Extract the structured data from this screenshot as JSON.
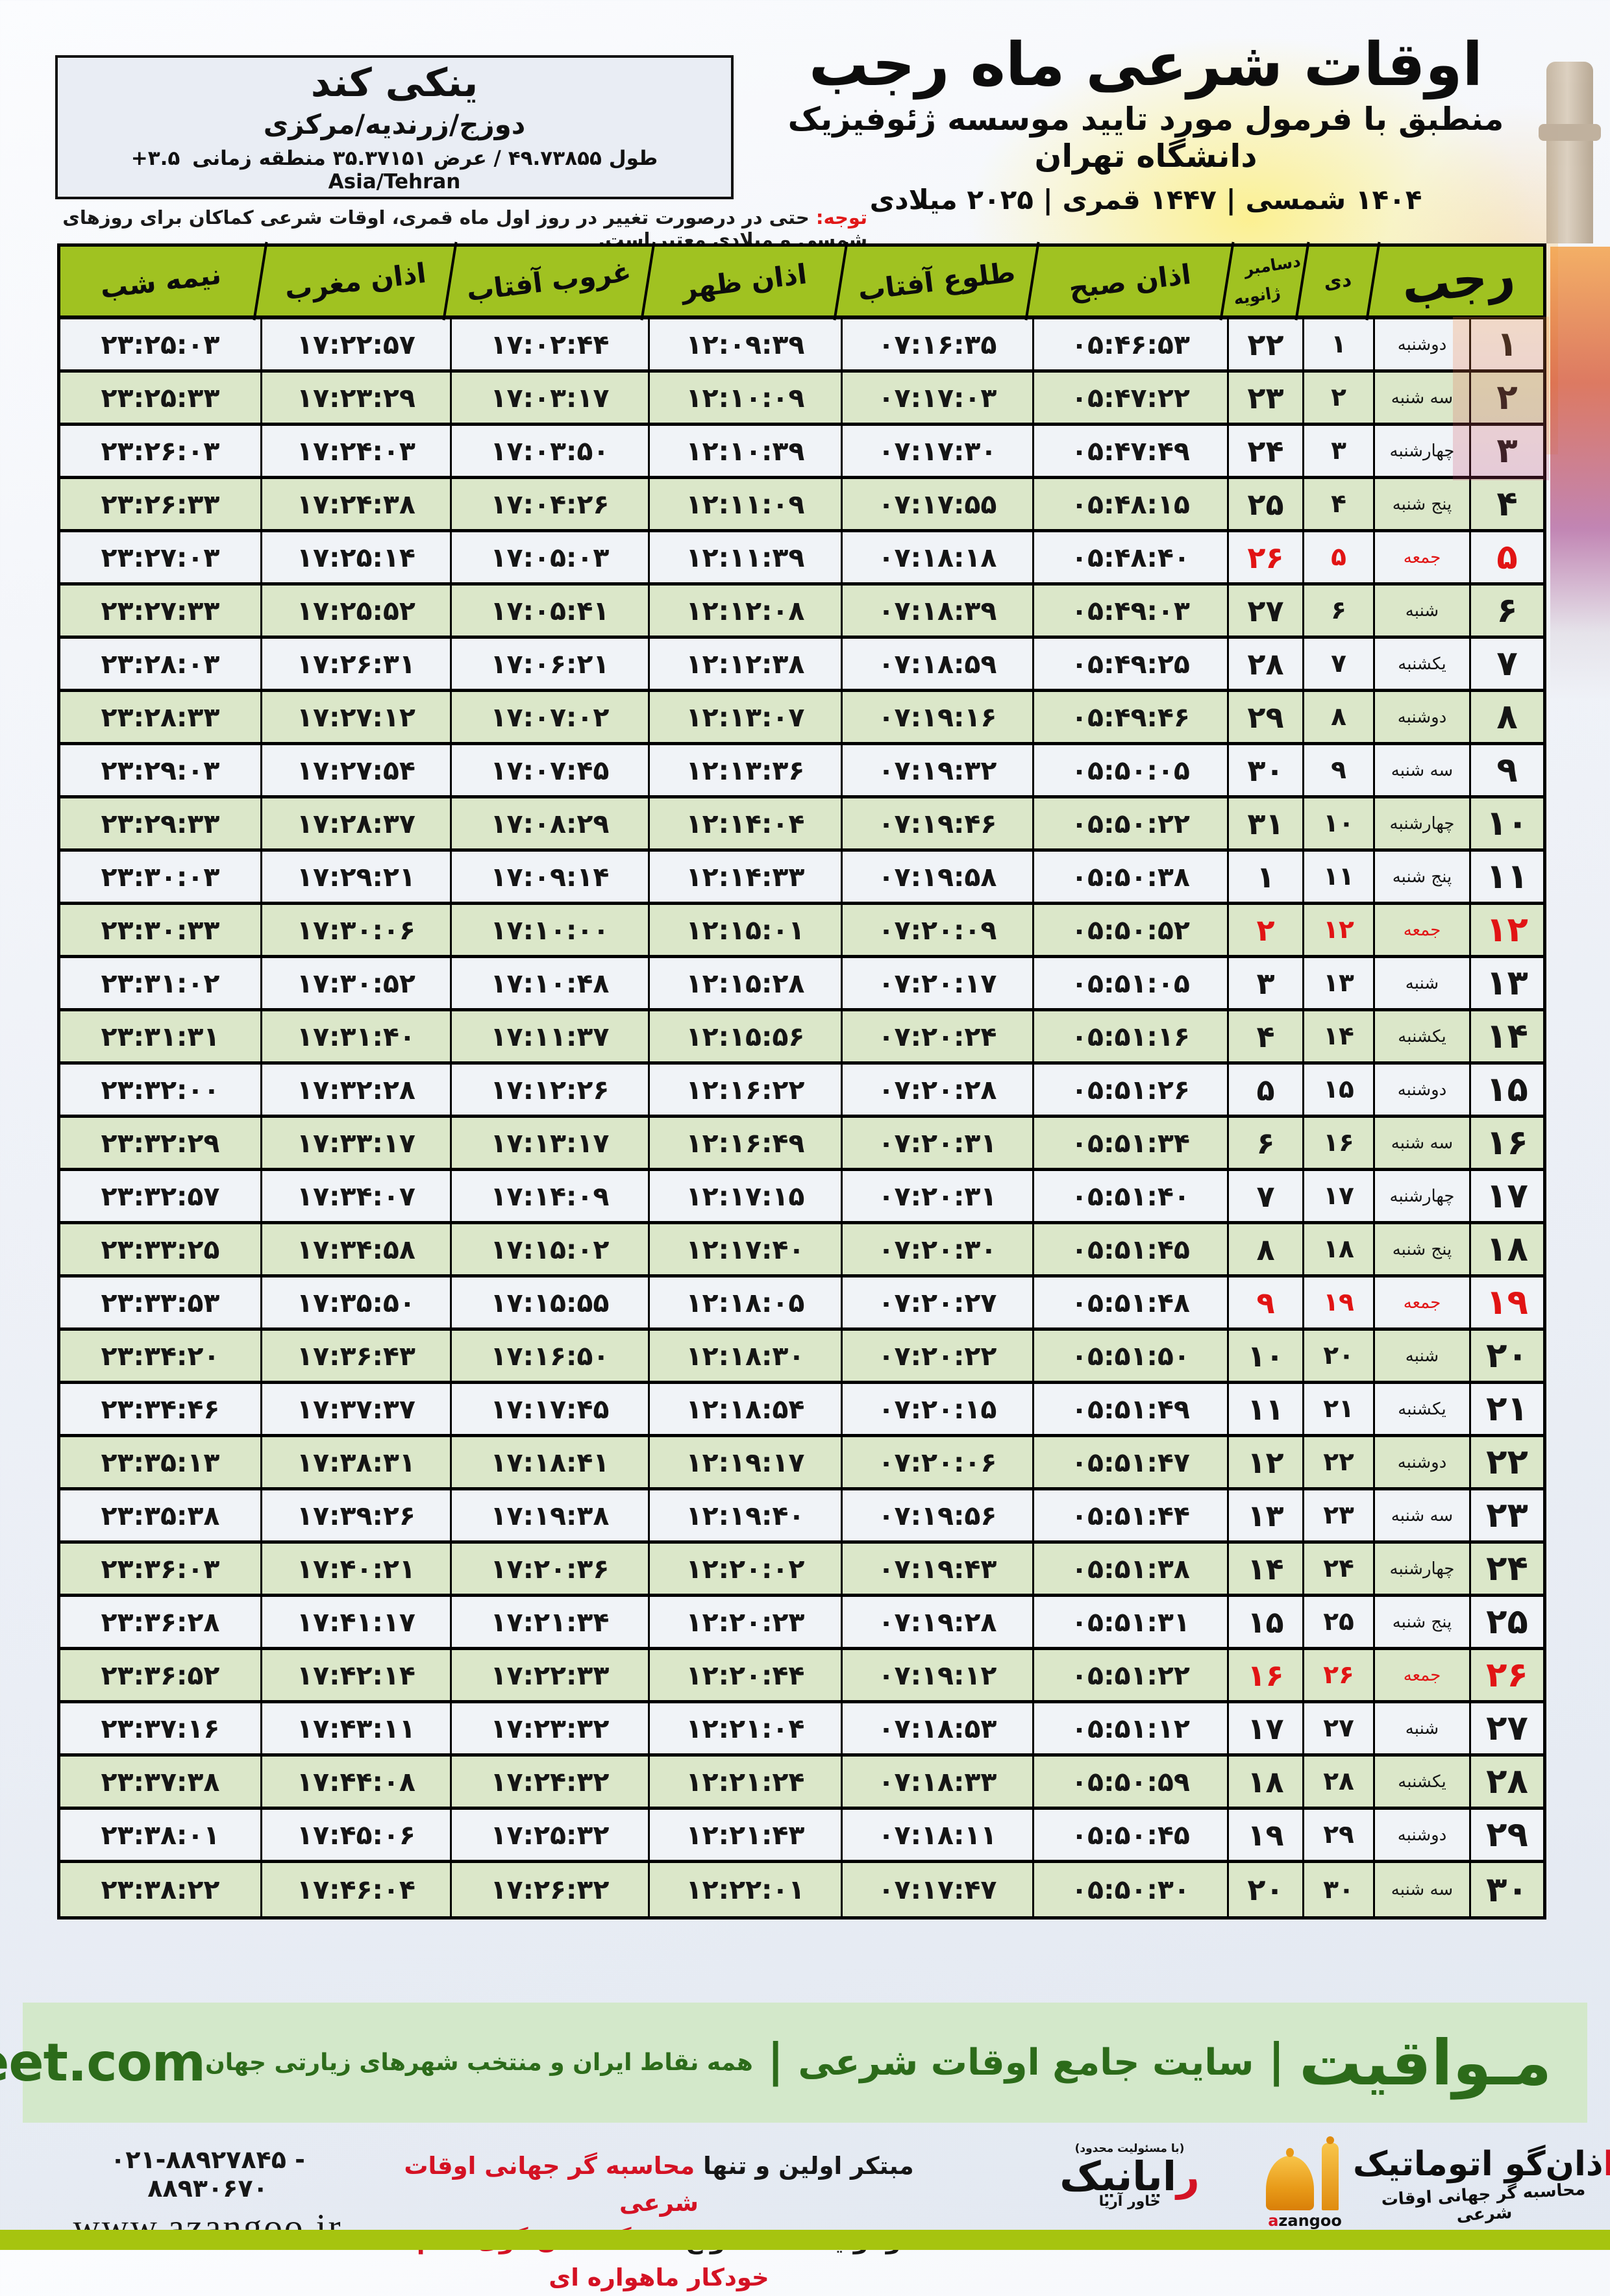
{
  "header": {
    "title": "اوقات شرعی ماه رجب",
    "subtitle": "منطبق با فرمول مورد تایید موسسه ژئوفیزیک دانشگاه تهران",
    "date_line": "۱۴۰۴ شمسی | ۱۴۴۷ قمری | ۲۰۲۵ میلادی"
  },
  "location_box": {
    "name": "ینکی کند",
    "region": "دوزج/زرندیه/مرکزی",
    "coords": "طول ۴۹.۷۳۸۵۵ / عرض ۳۵.۳۷۱۵۱ منطقه زمانی",
    "timezone_offset": "+۳.۵",
    "timezone_name": "Asia/Tehran"
  },
  "note": {
    "label": "توجه:",
    "text": " حتی در درصورت تغییر در روز اول ماه قمری، اوقات شرعی کماکان برای روزهای شمسی و میلادی معتبر است."
  },
  "table": {
    "headers": {
      "rajab": "رجب",
      "dey": "دی",
      "greg_top": "دسامبر",
      "greg_bottom": "ژانویه",
      "sobh": "اذان صبح",
      "tolu": "طلوع آفتاب",
      "zohr": "اذان ظهر",
      "ghorub": "غروب آفتاب",
      "maghreb": "اذان مغرب",
      "nimeshab": "نیمه شب"
    },
    "rows": [
      {
        "rajab": "۱",
        "weekday": "دوشنبه",
        "dey": "۱",
        "greg": "۲۲",
        "sobh": "۰۵:۴۶:۵۳",
        "tolu": "۰۷:۱۶:۳۵",
        "zohr": "۱۲:۰۹:۳۹",
        "ghorub": "۱۷:۰۲:۴۴",
        "maghreb": "۱۷:۲۲:۵۷",
        "nimeshab": "۲۳:۲۵:۰۳",
        "friday": false
      },
      {
        "rajab": "۲",
        "weekday": "سه شنبه",
        "dey": "۲",
        "greg": "۲۳",
        "sobh": "۰۵:۴۷:۲۲",
        "tolu": "۰۷:۱۷:۰۳",
        "zohr": "۱۲:۱۰:۰۹",
        "ghorub": "۱۷:۰۳:۱۷",
        "maghreb": "۱۷:۲۳:۲۹",
        "nimeshab": "۲۳:۲۵:۳۳",
        "friday": false
      },
      {
        "rajab": "۳",
        "weekday": "چهارشنبه",
        "dey": "۳",
        "greg": "۲۴",
        "sobh": "۰۵:۴۷:۴۹",
        "tolu": "۰۷:۱۷:۳۰",
        "zohr": "۱۲:۱۰:۳۹",
        "ghorub": "۱۷:۰۳:۵۰",
        "maghreb": "۱۷:۲۴:۰۳",
        "nimeshab": "۲۳:۲۶:۰۳",
        "friday": false
      },
      {
        "rajab": "۴",
        "weekday": "پنج شنبه",
        "dey": "۴",
        "greg": "۲۵",
        "sobh": "۰۵:۴۸:۱۵",
        "tolu": "۰۷:۱۷:۵۵",
        "zohr": "۱۲:۱۱:۰۹",
        "ghorub": "۱۷:۰۴:۲۶",
        "maghreb": "۱۷:۲۴:۳۸",
        "nimeshab": "۲۳:۲۶:۳۳",
        "friday": false
      },
      {
        "rajab": "۵",
        "weekday": "جمعه",
        "dey": "۵",
        "greg": "۲۶",
        "sobh": "۰۵:۴۸:۴۰",
        "tolu": "۰۷:۱۸:۱۸",
        "zohr": "۱۲:۱۱:۳۹",
        "ghorub": "۱۷:۰۵:۰۳",
        "maghreb": "۱۷:۲۵:۱۴",
        "nimeshab": "۲۳:۲۷:۰۳",
        "friday": true
      },
      {
        "rajab": "۶",
        "weekday": "شنبه",
        "dey": "۶",
        "greg": "۲۷",
        "sobh": "۰۵:۴۹:۰۳",
        "tolu": "۰۷:۱۸:۳۹",
        "zohr": "۱۲:۱۲:۰۸",
        "ghorub": "۱۷:۰۵:۴۱",
        "maghreb": "۱۷:۲۵:۵۲",
        "nimeshab": "۲۳:۲۷:۳۳",
        "friday": false
      },
      {
        "rajab": "۷",
        "weekday": "یکشنبه",
        "dey": "۷",
        "greg": "۲۸",
        "sobh": "۰۵:۴۹:۲۵",
        "tolu": "۰۷:۱۸:۵۹",
        "zohr": "۱۲:۱۲:۳۸",
        "ghorub": "۱۷:۰۶:۲۱",
        "maghreb": "۱۷:۲۶:۳۱",
        "nimeshab": "۲۳:۲۸:۰۳",
        "friday": false
      },
      {
        "rajab": "۸",
        "weekday": "دوشنبه",
        "dey": "۸",
        "greg": "۲۹",
        "sobh": "۰۵:۴۹:۴۶",
        "tolu": "۰۷:۱۹:۱۶",
        "zohr": "۱۲:۱۳:۰۷",
        "ghorub": "۱۷:۰۷:۰۲",
        "maghreb": "۱۷:۲۷:۱۲",
        "nimeshab": "۲۳:۲۸:۳۳",
        "friday": false
      },
      {
        "rajab": "۹",
        "weekday": "سه شنبه",
        "dey": "۹",
        "greg": "۳۰",
        "sobh": "۰۵:۵۰:۰۵",
        "tolu": "۰۷:۱۹:۳۲",
        "zohr": "۱۲:۱۳:۳۶",
        "ghorub": "۱۷:۰۷:۴۵",
        "maghreb": "۱۷:۲۷:۵۴",
        "nimeshab": "۲۳:۲۹:۰۳",
        "friday": false
      },
      {
        "rajab": "۱۰",
        "weekday": "چهارشنبه",
        "dey": "۱۰",
        "greg": "۳۱",
        "sobh": "۰۵:۵۰:۲۲",
        "tolu": "۰۷:۱۹:۴۶",
        "zohr": "۱۲:۱۴:۰۴",
        "ghorub": "۱۷:۰۸:۲۹",
        "maghreb": "۱۷:۲۸:۳۷",
        "nimeshab": "۲۳:۲۹:۳۳",
        "friday": false
      },
      {
        "rajab": "۱۱",
        "weekday": "پنج شنبه",
        "dey": "۱۱",
        "greg": "۱",
        "sobh": "۰۵:۵۰:۳۸",
        "tolu": "۰۷:۱۹:۵۸",
        "zohr": "۱۲:۱۴:۳۳",
        "ghorub": "۱۷:۰۹:۱۴",
        "maghreb": "۱۷:۲۹:۲۱",
        "nimeshab": "۲۳:۳۰:۰۳",
        "friday": false
      },
      {
        "rajab": "۱۲",
        "weekday": "جمعه",
        "dey": "۱۲",
        "greg": "۲",
        "sobh": "۰۵:۵۰:۵۲",
        "tolu": "۰۷:۲۰:۰۹",
        "zohr": "۱۲:۱۵:۰۱",
        "ghorub": "۱۷:۱۰:۰۰",
        "maghreb": "۱۷:۳۰:۰۶",
        "nimeshab": "۲۳:۳۰:۳۳",
        "friday": true
      },
      {
        "rajab": "۱۳",
        "weekday": "شنبه",
        "dey": "۱۳",
        "greg": "۳",
        "sobh": "۰۵:۵۱:۰۵",
        "tolu": "۰۷:۲۰:۱۷",
        "zohr": "۱۲:۱۵:۲۸",
        "ghorub": "۱۷:۱۰:۴۸",
        "maghreb": "۱۷:۳۰:۵۲",
        "nimeshab": "۲۳:۳۱:۰۲",
        "friday": false
      },
      {
        "rajab": "۱۴",
        "weekday": "یکشنبه",
        "dey": "۱۴",
        "greg": "۴",
        "sobh": "۰۵:۵۱:۱۶",
        "tolu": "۰۷:۲۰:۲۴",
        "zohr": "۱۲:۱۵:۵۶",
        "ghorub": "۱۷:۱۱:۳۷",
        "maghreb": "۱۷:۳۱:۴۰",
        "nimeshab": "۲۳:۳۱:۳۱",
        "friday": false
      },
      {
        "rajab": "۱۵",
        "weekday": "دوشنبه",
        "dey": "۱۵",
        "greg": "۵",
        "sobh": "۰۵:۵۱:۲۶",
        "tolu": "۰۷:۲۰:۲۸",
        "zohr": "۱۲:۱۶:۲۲",
        "ghorub": "۱۷:۱۲:۲۶",
        "maghreb": "۱۷:۳۲:۲۸",
        "nimeshab": "۲۳:۳۲:۰۰",
        "friday": false
      },
      {
        "rajab": "۱۶",
        "weekday": "سه شنبه",
        "dey": "۱۶",
        "greg": "۶",
        "sobh": "۰۵:۵۱:۳۴",
        "tolu": "۰۷:۲۰:۳۱",
        "zohr": "۱۲:۱۶:۴۹",
        "ghorub": "۱۷:۱۳:۱۷",
        "maghreb": "۱۷:۳۳:۱۷",
        "nimeshab": "۲۳:۳۲:۲۹",
        "friday": false
      },
      {
        "rajab": "۱۷",
        "weekday": "چهارشنبه",
        "dey": "۱۷",
        "greg": "۷",
        "sobh": "۰۵:۵۱:۴۰",
        "tolu": "۰۷:۲۰:۳۱",
        "zohr": "۱۲:۱۷:۱۵",
        "ghorub": "۱۷:۱۴:۰۹",
        "maghreb": "۱۷:۳۴:۰۷",
        "nimeshab": "۲۳:۳۲:۵۷",
        "friday": false
      },
      {
        "rajab": "۱۸",
        "weekday": "پنج شنبه",
        "dey": "۱۸",
        "greg": "۸",
        "sobh": "۰۵:۵۱:۴۵",
        "tolu": "۰۷:۲۰:۳۰",
        "zohr": "۱۲:۱۷:۴۰",
        "ghorub": "۱۷:۱۵:۰۲",
        "maghreb": "۱۷:۳۴:۵۸",
        "nimeshab": "۲۳:۳۳:۲۵",
        "friday": false
      },
      {
        "rajab": "۱۹",
        "weekday": "جمعه",
        "dey": "۱۹",
        "greg": "۹",
        "sobh": "۰۵:۵۱:۴۸",
        "tolu": "۰۷:۲۰:۲۷",
        "zohr": "۱۲:۱۸:۰۵",
        "ghorub": "۱۷:۱۵:۵۵",
        "maghreb": "۱۷:۳۵:۵۰",
        "nimeshab": "۲۳:۳۳:۵۳",
        "friday": true
      },
      {
        "rajab": "۲۰",
        "weekday": "شنبه",
        "dey": "۲۰",
        "greg": "۱۰",
        "sobh": "۰۵:۵۱:۵۰",
        "tolu": "۰۷:۲۰:۲۲",
        "zohr": "۱۲:۱۸:۳۰",
        "ghorub": "۱۷:۱۶:۵۰",
        "maghreb": "۱۷:۳۶:۴۳",
        "nimeshab": "۲۳:۳۴:۲۰",
        "friday": false
      },
      {
        "rajab": "۲۱",
        "weekday": "یکشنبه",
        "dey": "۲۱",
        "greg": "۱۱",
        "sobh": "۰۵:۵۱:۴۹",
        "tolu": "۰۷:۲۰:۱۵",
        "zohr": "۱۲:۱۸:۵۴",
        "ghorub": "۱۷:۱۷:۴۵",
        "maghreb": "۱۷:۳۷:۳۷",
        "nimeshab": "۲۳:۳۴:۴۶",
        "friday": false
      },
      {
        "rajab": "۲۲",
        "weekday": "دوشنبه",
        "dey": "۲۲",
        "greg": "۱۲",
        "sobh": "۰۵:۵۱:۴۷",
        "tolu": "۰۷:۲۰:۰۶",
        "zohr": "۱۲:۱۹:۱۷",
        "ghorub": "۱۷:۱۸:۴۱",
        "maghreb": "۱۷:۳۸:۳۱",
        "nimeshab": "۲۳:۳۵:۱۳",
        "friday": false
      },
      {
        "rajab": "۲۳",
        "weekday": "سه شنبه",
        "dey": "۲۳",
        "greg": "۱۳",
        "sobh": "۰۵:۵۱:۴۴",
        "tolu": "۰۷:۱۹:۵۶",
        "zohr": "۱۲:۱۹:۴۰",
        "ghorub": "۱۷:۱۹:۳۸",
        "maghreb": "۱۷:۳۹:۲۶",
        "nimeshab": "۲۳:۳۵:۳۸",
        "friday": false
      },
      {
        "rajab": "۲۴",
        "weekday": "چهارشنبه",
        "dey": "۲۴",
        "greg": "۱۴",
        "sobh": "۰۵:۵۱:۳۸",
        "tolu": "۰۷:۱۹:۴۳",
        "zohr": "۱۲:۲۰:۰۲",
        "ghorub": "۱۷:۲۰:۳۶",
        "maghreb": "۱۷:۴۰:۲۱",
        "nimeshab": "۲۳:۳۶:۰۳",
        "friday": false
      },
      {
        "rajab": "۲۵",
        "weekday": "پنج شنبه",
        "dey": "۲۵",
        "greg": "۱۵",
        "sobh": "۰۵:۵۱:۳۱",
        "tolu": "۰۷:۱۹:۲۸",
        "zohr": "۱۲:۲۰:۲۳",
        "ghorub": "۱۷:۲۱:۳۴",
        "maghreb": "۱۷:۴۱:۱۷",
        "nimeshab": "۲۳:۳۶:۲۸",
        "friday": false
      },
      {
        "rajab": "۲۶",
        "weekday": "جمعه",
        "dey": "۲۶",
        "greg": "۱۶",
        "sobh": "۰۵:۵۱:۲۲",
        "tolu": "۰۷:۱۹:۱۲",
        "zohr": "۱۲:۲۰:۴۴",
        "ghorub": "۱۷:۲۲:۳۳",
        "maghreb": "۱۷:۴۲:۱۴",
        "nimeshab": "۲۳:۳۶:۵۲",
        "friday": true
      },
      {
        "rajab": "۲۷",
        "weekday": "شنبه",
        "dey": "۲۷",
        "greg": "۱۷",
        "sobh": "۰۵:۵۱:۱۲",
        "tolu": "۰۷:۱۸:۵۳",
        "zohr": "۱۲:۲۱:۰۴",
        "ghorub": "۱۷:۲۳:۳۲",
        "maghreb": "۱۷:۴۳:۱۱",
        "nimeshab": "۲۳:۳۷:۱۶",
        "friday": false
      },
      {
        "rajab": "۲۸",
        "weekday": "یکشنبه",
        "dey": "۲۸",
        "greg": "۱۸",
        "sobh": "۰۵:۵۰:۵۹",
        "tolu": "۰۷:۱۸:۳۳",
        "zohr": "۱۲:۲۱:۲۴",
        "ghorub": "۱۷:۲۴:۳۲",
        "maghreb": "۱۷:۴۴:۰۸",
        "nimeshab": "۲۳:۳۷:۳۸",
        "friday": false
      },
      {
        "rajab": "۲۹",
        "weekday": "دوشنبه",
        "dey": "۲۹",
        "greg": "۱۹",
        "sobh": "۰۵:۵۰:۴۵",
        "tolu": "۰۷:۱۸:۱۱",
        "zohr": "۱۲:۲۱:۴۳",
        "ghorub": "۱۷:۲۵:۳۲",
        "maghreb": "۱۷:۴۵:۰۶",
        "nimeshab": "۲۳:۳۸:۰۱",
        "friday": false
      },
      {
        "rajab": "۳۰",
        "weekday": "سه شنبه",
        "dey": "۳۰",
        "greg": "۲۰",
        "sobh": "۰۵:۵۰:۳۰",
        "tolu": "۰۷:۱۷:۴۷",
        "zohr": "۱۲:۲۲:۰۱",
        "ghorub": "۱۷:۲۶:۳۲",
        "maghreb": "۱۷:۴۶:۰۴",
        "nimeshab": "۲۳:۳۸:۲۲",
        "friday": false
      }
    ]
  },
  "footer": {
    "brand": "مـواقیت",
    "separator": "|",
    "site_desc": "سایت جامع اوقات شرعی",
    "site_desc2": "همه نقاط ایران و منتخب شهرهای زیارتی جهان",
    "url": "mavaqeet.com"
  },
  "bottom": {
    "phone": "۰۲۱-۸۸۹۲۷۸۴۵ - ۸۸۹۳۰۶۷۰",
    "website": "www.azangoo.ir",
    "tagline1_black": "مبتکر اولین و تنها ",
    "tagline1_red": "محاسبه گر جهانی اوقات شرعی",
    "tagline2_black": "و تولید کننده انواع ",
    "tagline2_red": "دستگاه اذان گوی تمام خودکار ماهواره ای",
    "rayanik_small": "(با مسئولیت محدود)",
    "rayanik_first": "ر",
    "rayanik_rest": "ایانیک",
    "rayanik_sub": "خاور آریا",
    "azangoo_first": "ا",
    "azangoo_rest": "ذان‌گو اتوماتیک",
    "azangoo_sub": "محاسبه گر جهانی اوقات شرعی",
    "azangoo_latin_a": "a",
    "azangoo_latin_rest": "zangoo"
  },
  "colors": {
    "header_green": "#a0c221",
    "row_green": "#dbe7c9",
    "row_white": "#f0f3f7",
    "friday_red": "#e11414",
    "footer_bg": "#d3e8ca",
    "footer_text": "#2c6b1a",
    "bottom_bar": "#a6c40f"
  }
}
